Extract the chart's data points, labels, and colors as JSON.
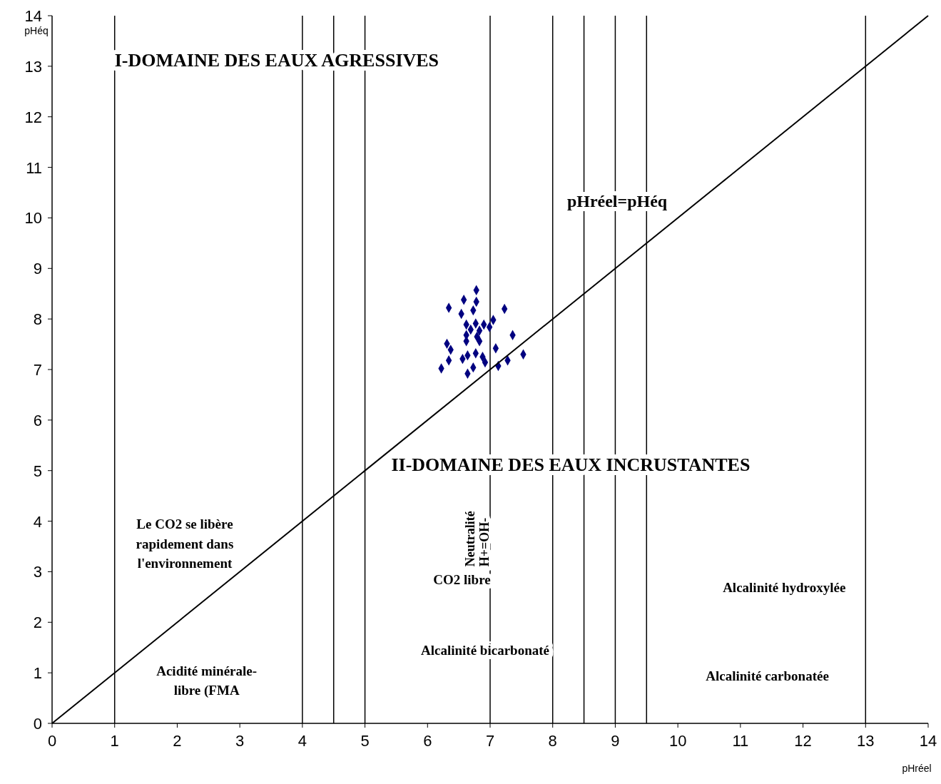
{
  "chart_data": {
    "type": "scatter",
    "xlabel": "pHréel",
    "ylabel": "pHéq",
    "xlim": [
      0,
      14
    ],
    "ylim": [
      0,
      14
    ],
    "xticks": [
      0,
      1,
      2,
      3,
      4,
      5,
      6,
      7,
      8,
      9,
      10,
      11,
      12,
      13,
      14
    ],
    "yticks": [
      0,
      1,
      2,
      3,
      4,
      5,
      6,
      7,
      8,
      9,
      10,
      11,
      12,
      13,
      14
    ],
    "grid": false,
    "marker": "diamond",
    "series": [
      {
        "color": "#000080",
        "x": [
          6.78,
          6.58,
          6.34,
          6.78,
          6.73,
          7.23,
          6.54,
          7.05,
          6.62,
          6.77,
          6.9,
          6.99,
          6.69,
          6.83,
          6.62,
          6.79,
          7.36,
          6.62,
          6.83,
          6.31,
          6.37,
          7.09,
          6.64,
          6.77,
          6.88,
          7.53,
          6.34,
          6.56,
          7.28,
          6.92,
          7.13,
          6.22,
          6.73,
          6.64
        ],
        "values": [
          8.57,
          8.38,
          8.22,
          8.34,
          8.17,
          8.2,
          8.1,
          7.98,
          7.89,
          7.91,
          7.89,
          7.84,
          7.79,
          7.77,
          7.68,
          7.65,
          7.68,
          7.56,
          7.56,
          7.51,
          7.39,
          7.42,
          7.28,
          7.32,
          7.25,
          7.3,
          7.18,
          7.21,
          7.18,
          7.14,
          7.07,
          7.02,
          7.04,
          6.92
        ]
      },
      {
        "type": "line",
        "name": "pHréel=pHéq",
        "color": "#000000",
        "marker": "none",
        "line_style": "solid",
        "x": [
          0,
          14
        ],
        "values": [
          0,
          14
        ]
      }
    ],
    "ref_lines": [
      {
        "axis": "x",
        "value": 1,
        "color": "#000000"
      },
      {
        "axis": "x",
        "value": 4,
        "color": "#000000"
      },
      {
        "axis": "x",
        "value": 4.5,
        "color": "#000000"
      },
      {
        "axis": "x",
        "value": 5,
        "color": "#000000"
      },
      {
        "axis": "x",
        "value": 7,
        "color": "#000000"
      },
      {
        "axis": "x",
        "value": 8,
        "color": "#000000"
      },
      {
        "axis": "x",
        "value": 8.5,
        "color": "#000000"
      },
      {
        "axis": "x",
        "value": 9,
        "color": "#000000"
      },
      {
        "axis": "x",
        "value": 9.5,
        "color": "#000000"
      },
      {
        "axis": "x",
        "value": 13,
        "color": "#000000"
      }
    ],
    "annotations": [
      "I-DOMAINE DES EAUX AGRESSIVES",
      "II-DOMAINE DES EAUX INCRUSTANTES",
      "Neutralité",
      "H+=OH-",
      "Le CO2 se libère\nrapidement dans\nl'environnement",
      "CO2 libre",
      "Alcalinité hydroxylée",
      "Alcalinité bicarbonaté",
      "Acidité minérale-\nlibre (FMA",
      "Alcalinité carbonatée"
    ]
  }
}
